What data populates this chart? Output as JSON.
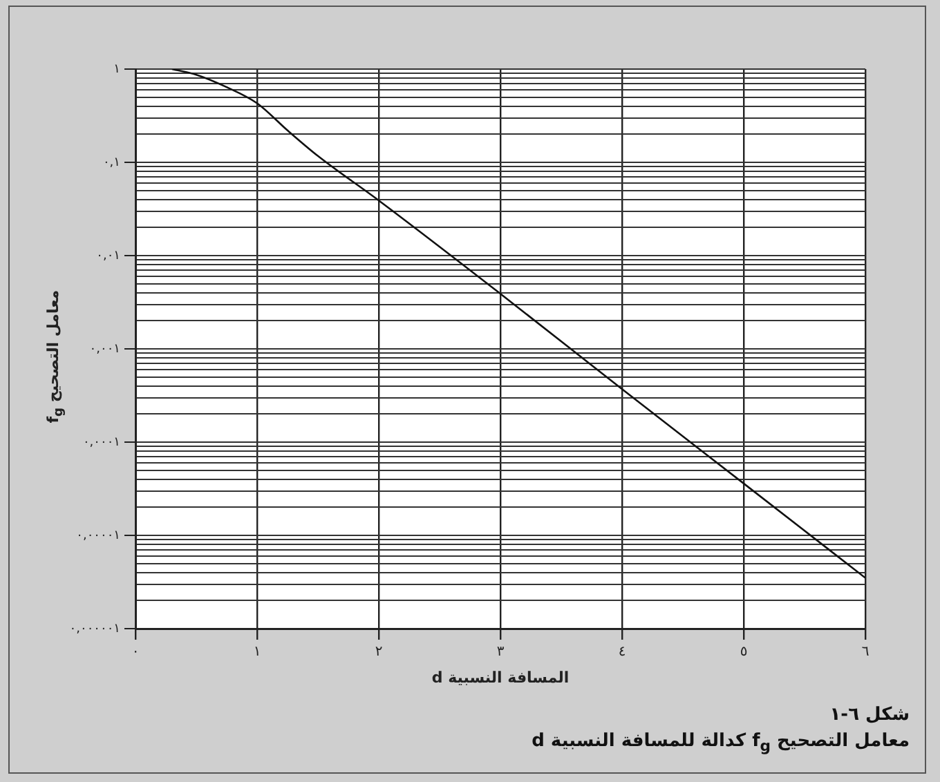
{
  "chart_data": {
    "type": "line",
    "title": "شكل ٦-١",
    "subtitle": "معامل التصحيح f$_{g}$ كدالة للمسافة النسبية d",
    "xlabel": "المسافة النسبية d",
    "ylabel": "معامل التصحيح f$_{g}$",
    "x": [
      0.3,
      0.5,
      0.75,
      1,
      1.25,
      1.5,
      2,
      3,
      4,
      5,
      6
    ],
    "series": [
      {
        "color": "#111111",
        "values": [
          1,
          0.87,
          0.64,
          0.43,
          0.22,
          0.117,
          0.039,
          0.0039,
          0.00037,
          3.6e-05,
          3.5e-06
        ]
      }
    ],
    "xlim": [
      0,
      6
    ],
    "xticks": [
      {
        "value": 0,
        "label": "٠"
      },
      {
        "value": 1,
        "label": "١"
      },
      {
        "value": 2,
        "label": "٢"
      },
      {
        "value": 3,
        "label": "٣"
      },
      {
        "value": 4,
        "label": "٤"
      },
      {
        "value": 5,
        "label": "٥"
      },
      {
        "value": 6,
        "label": "٦"
      }
    ],
    "ylim": [
      1e-06,
      1
    ],
    "yticks": [
      {
        "value": 1,
        "label": "١"
      },
      {
        "value": 0.1,
        "label": "٠,١"
      },
      {
        "value": 0.01,
        "label": "٠,٠١"
      },
      {
        "value": 0.001,
        "label": "٠,٠٠١"
      },
      {
        "value": 0.0001,
        "label": "٠,٠٠٠١"
      },
      {
        "value": 1e-05,
        "label": "٠,٠٠٠٠١"
      },
      {
        "value": 1e-06,
        "label": "٠,٠٠٠٠٠١"
      }
    ],
    "log": "y",
    "grid": true,
    "legend": false,
    "marker": "none",
    "line_style": "solid"
  }
}
